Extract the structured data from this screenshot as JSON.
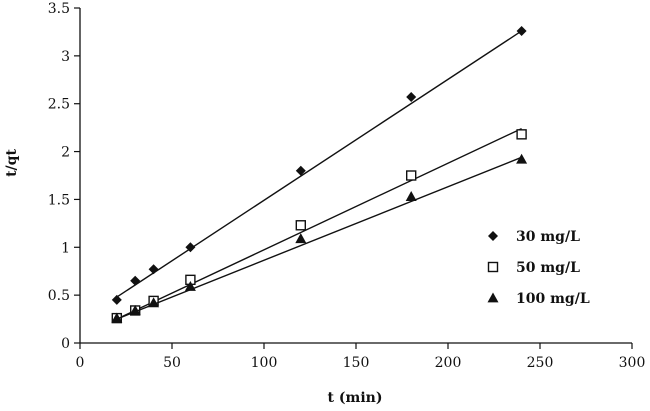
{
  "chart_data": {
    "type": "scatter",
    "title": "",
    "xlabel": "t (min)",
    "ylabel": "t/qt",
    "xlim": [
      0,
      300
    ],
    "ylim": [
      0,
      3.5
    ],
    "xticks": [
      0,
      50,
      100,
      150,
      200,
      250,
      300
    ],
    "yticks": [
      0,
      0.5,
      1,
      1.5,
      2,
      2.5,
      3,
      3.5
    ],
    "xtick_labels": [
      "0",
      "50",
      "100",
      "150",
      "200",
      "250",
      "300"
    ],
    "ytick_labels": [
      "0",
      "0.5",
      "1",
      "1.5",
      "2",
      "2.5",
      "3",
      "3.5"
    ],
    "grid": false,
    "legend_position": "right",
    "series": [
      {
        "name": "30 mg/L",
        "marker": "diamond",
        "x": [
          20,
          30,
          40,
          60,
          120,
          180,
          240
        ],
        "y": [
          0.45,
          0.65,
          0.77,
          1.0,
          1.8,
          2.57,
          3.26
        ],
        "fit": {
          "x": [
            20,
            240
          ],
          "y": [
            0.48,
            3.26
          ]
        }
      },
      {
        "name": "50 mg/L",
        "marker": "square-open",
        "x": [
          20,
          30,
          40,
          60,
          120,
          180,
          240
        ],
        "y": [
          0.26,
          0.34,
          0.44,
          0.66,
          1.23,
          1.75,
          2.18
        ],
        "fit": {
          "x": [
            20,
            240
          ],
          "y": [
            0.25,
            2.24
          ]
        }
      },
      {
        "name": "100 mg/L",
        "marker": "triangle",
        "x": [
          20,
          30,
          40,
          60,
          120,
          180,
          240
        ],
        "y": [
          0.26,
          0.34,
          0.42,
          0.59,
          1.09,
          1.53,
          1.92
        ],
        "fit": {
          "x": [
            20,
            240
          ],
          "y": [
            0.25,
            1.94
          ]
        }
      }
    ]
  },
  "colors": {
    "ink": "#111111",
    "background": "#ffffff"
  }
}
